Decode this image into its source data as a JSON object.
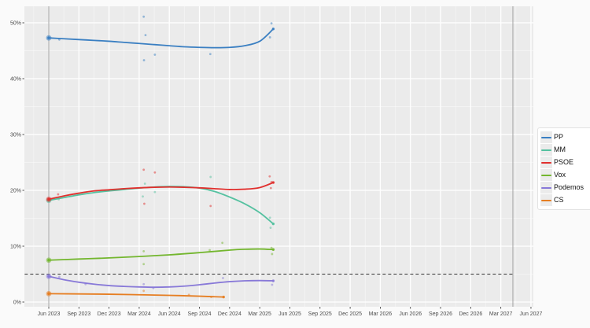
{
  "chart_data": {
    "type": "line",
    "title": "",
    "xlabel": "",
    "ylabel": "",
    "legend_position": "right",
    "grid": true,
    "x_axis": {
      "tick_labels": [
        "Jun 2023",
        "Sep 2023",
        "Dec 2023",
        "Mar 2024",
        "Jun 2024",
        "Sep 2024",
        "Dec 2024",
        "Mar 2025",
        "Jun 2025",
        "Sep 2025",
        "Dec 2025",
        "Mar 2026",
        "Jun 2026",
        "Sep 2026",
        "Dec 2026",
        "Mar 2027",
        "Jun 2027"
      ]
    },
    "y_axis": {
      "tick_labels": [
        "0%",
        "10%",
        "20%",
        "30%",
        "40%",
        "50%"
      ],
      "tick_values": [
        0,
        10,
        20,
        30,
        40,
        50
      ],
      "minor_values": [
        5,
        15,
        25,
        35,
        45
      ],
      "range_pct": [
        -0.9,
        53
      ]
    },
    "threshold_line": {
      "value_pct": 5,
      "style": "dashed",
      "color": "#333333",
      "from_q": -0.8,
      "to_q": 15.4
    },
    "event_lines": [
      {
        "x_q": 0
      },
      {
        "x_q": 15.4
      }
    ],
    "event_line_color": "#9a9a9a",
    "series": [
      {
        "name": "PP",
        "color": "#3a7fc2",
        "election_result_pct": 47.3,
        "trend": [
          [
            0,
            47.3
          ],
          [
            0.5,
            47.15
          ],
          [
            1,
            47.0
          ],
          [
            1.5,
            46.85
          ],
          [
            2,
            46.7
          ],
          [
            2.5,
            46.5
          ],
          [
            3,
            46.3
          ],
          [
            3.5,
            46.1
          ],
          [
            4,
            45.9
          ],
          [
            4.5,
            45.7
          ],
          [
            5,
            45.6
          ],
          [
            5.5,
            45.55
          ],
          [
            6,
            45.6
          ],
          [
            6.5,
            45.9
          ],
          [
            7,
            46.7
          ],
          [
            7.45,
            48.9
          ]
        ],
        "polls": [
          [
            0.35,
            47.0
          ],
          [
            3.15,
            51.1
          ],
          [
            3.21,
            47.8
          ],
          [
            3.16,
            43.3
          ],
          [
            3.52,
            44.3
          ],
          [
            5.36,
            44.4
          ],
          [
            7.39,
            49.9
          ],
          [
            7.34,
            47.4
          ]
        ]
      },
      {
        "name": "MM",
        "color": "#55c1a0",
        "election_result_pct": 18.2,
        "trend": [
          [
            0,
            18.2
          ],
          [
            0.5,
            18.7
          ],
          [
            1,
            19.2
          ],
          [
            1.5,
            19.6
          ],
          [
            2,
            19.9
          ],
          [
            2.5,
            20.15
          ],
          [
            3,
            20.4
          ],
          [
            3.5,
            20.6
          ],
          [
            4,
            20.7
          ],
          [
            4.5,
            20.65
          ],
          [
            5,
            20.4
          ],
          [
            5.5,
            19.8
          ],
          [
            6,
            18.8
          ],
          [
            6.5,
            17.6
          ],
          [
            7,
            16.0
          ],
          [
            7.45,
            14.0
          ]
        ],
        "polls": [
          [
            0.33,
            18.4
          ],
          [
            3.19,
            21.2
          ],
          [
            3.52,
            19.7
          ],
          [
            3.12,
            18.9
          ],
          [
            5.37,
            22.4
          ],
          [
            7.34,
            15.1
          ],
          [
            7.36,
            13.3
          ]
        ]
      },
      {
        "name": "PSOE",
        "color": "#e0302e",
        "election_result_pct": 18.4,
        "trend": [
          [
            0,
            18.4
          ],
          [
            0.5,
            19.0
          ],
          [
            1,
            19.5
          ],
          [
            1.5,
            19.9
          ],
          [
            2,
            20.1
          ],
          [
            2.5,
            20.3
          ],
          [
            3,
            20.45
          ],
          [
            3.5,
            20.55
          ],
          [
            4,
            20.6
          ],
          [
            4.5,
            20.55
          ],
          [
            5,
            20.45
          ],
          [
            5.5,
            20.3
          ],
          [
            6,
            20.15
          ],
          [
            6.5,
            20.2
          ],
          [
            7,
            20.5
          ],
          [
            7.45,
            21.4
          ]
        ],
        "polls": [
          [
            0.31,
            19.3
          ],
          [
            3.15,
            23.7
          ],
          [
            3.52,
            23.2
          ],
          [
            3.17,
            17.6
          ],
          [
            5.37,
            17.2
          ],
          [
            7.33,
            22.5
          ],
          [
            7.39,
            21.5
          ],
          [
            7.37,
            20.4
          ]
        ]
      },
      {
        "name": "Vox",
        "color": "#73b62e",
        "election_result_pct": 7.5,
        "trend": [
          [
            0,
            7.5
          ],
          [
            1,
            7.7
          ],
          [
            2,
            7.9
          ],
          [
            3,
            8.15
          ],
          [
            4,
            8.45
          ],
          [
            5,
            8.85
          ],
          [
            6,
            9.3
          ],
          [
            6.5,
            9.45
          ],
          [
            7,
            9.5
          ],
          [
            7.45,
            9.4
          ]
        ],
        "polls": [
          [
            3.15,
            9.1
          ],
          [
            3.15,
            6.8
          ],
          [
            5.34,
            9.3
          ],
          [
            5.76,
            10.6
          ],
          [
            7.39,
            9.7
          ],
          [
            7.41,
            8.6
          ]
        ]
      },
      {
        "name": "Podemos",
        "color": "#8879d8",
        "election_result_pct": 4.6,
        "trend": [
          [
            0,
            4.6
          ],
          [
            0.5,
            4.0
          ],
          [
            1,
            3.55
          ],
          [
            1.5,
            3.2
          ],
          [
            2,
            2.95
          ],
          [
            2.5,
            2.8
          ],
          [
            3,
            2.7
          ],
          [
            3.5,
            2.65
          ],
          [
            4,
            2.7
          ],
          [
            4.5,
            2.85
          ],
          [
            5,
            3.1
          ],
          [
            5.5,
            3.4
          ],
          [
            6,
            3.65
          ],
          [
            6.5,
            3.8
          ],
          [
            7,
            3.85
          ],
          [
            7.45,
            3.8
          ]
        ],
        "polls": [
          [
            0.35,
            4.5
          ],
          [
            1.22,
            3.2
          ],
          [
            3.15,
            3.2
          ],
          [
            3.47,
            2.5
          ],
          [
            5.78,
            4.3
          ],
          [
            7.41,
            3.1
          ]
        ]
      },
      {
        "name": "CS",
        "color": "#e67e22",
        "election_result_pct": 1.5,
        "trend": [
          [
            0,
            1.5
          ],
          [
            1,
            1.45
          ],
          [
            2,
            1.4
          ],
          [
            3,
            1.3
          ],
          [
            4,
            1.2
          ],
          [
            5,
            1.05
          ],
          [
            5.5,
            0.95
          ],
          [
            5.8,
            0.9
          ]
        ],
        "polls": [
          [
            3.15,
            2.0
          ],
          [
            4.65,
            1.3
          ],
          [
            5.39,
            0.9
          ]
        ]
      }
    ],
    "panel_bg": "#ebebeb",
    "grid_major_color": "#ffffff",
    "axis_text_color": "#4d4d4d"
  }
}
